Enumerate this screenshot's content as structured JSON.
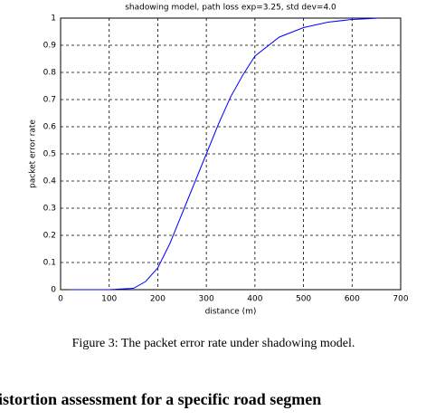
{
  "chart_data": {
    "type": "line",
    "title": "shadowing model, path loss exp=3.25, std dev=4.0",
    "xlabel": "distance (m)",
    "ylabel": "packet error rate",
    "x": [
      20,
      100,
      150,
      175,
      200,
      225,
      250,
      275,
      300,
      325,
      350,
      375,
      400,
      450,
      500,
      550,
      600,
      625,
      655
    ],
    "series": [
      {
        "color": "#0000ff",
        "values": [
          0,
          0,
          0.005,
          0.03,
          0.08,
          0.17,
          0.28,
          0.39,
          0.5,
          0.61,
          0.71,
          0.79,
          0.86,
          0.93,
          0.965,
          0.985,
          0.995,
          0.997,
          1
        ]
      }
    ],
    "xlim": [
      0,
      700
    ],
    "xticks": [
      0,
      100,
      200,
      300,
      400,
      500,
      600,
      700
    ],
    "ylim": [
      0,
      1
    ],
    "yticks": [
      0,
      0.1,
      0.2,
      0.3,
      0.4,
      0.5,
      0.6,
      0.7,
      0.8,
      0.9,
      1
    ],
    "grid": true
  },
  "caption": "Figure 3: The packet error rate under shadowing model.",
  "heading": "istortion assessment for a specific road segmen"
}
